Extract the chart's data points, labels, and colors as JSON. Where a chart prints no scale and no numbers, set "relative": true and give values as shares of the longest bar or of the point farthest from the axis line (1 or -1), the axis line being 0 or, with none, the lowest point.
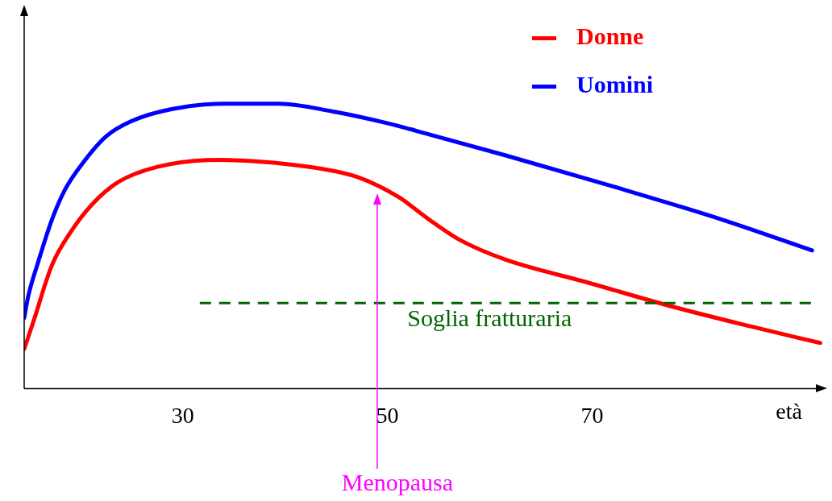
{
  "chart_data": {
    "type": "line",
    "relative": true,
    "xlabel": "età",
    "xlim": [
      14.5,
      92.5
    ],
    "xticks": [
      30,
      50,
      70
    ],
    "legend": "top right",
    "marker": "none",
    "line_style": "solid",
    "grid": false,
    "series": [
      {
        "name": "Donne",
        "color": "#ff0000",
        "x": [
          14.5,
          15.4,
          17.2,
          19.0,
          21.1,
          23.7,
          27.6,
          33.6,
          38.1,
          43.3,
          47.2,
          51.1,
          54.0,
          57.0,
          61.5,
          69.5,
          77.5,
          85.4,
          92.3
        ],
        "values": [
          0.139,
          0.235,
          0.432,
          0.547,
          0.645,
          0.725,
          0.779,
          0.803,
          0.795,
          0.773,
          0.741,
          0.672,
          0.595,
          0.523,
          0.453,
          0.373,
          0.291,
          0.219,
          0.16
        ]
      },
      {
        "name": "Uomini",
        "color": "#0000ff",
        "x": [
          14.5,
          14.9,
          15.9,
          17.2,
          18.5,
          20.3,
          22.5,
          25.0,
          28.9,
          34.2,
          39.4,
          44.6,
          49.8,
          54.0,
          61.5,
          72.1,
          82.8,
          91.5
        ],
        "values": [
          0.248,
          0.325,
          0.448,
          0.592,
          0.699,
          0.795,
          0.885,
          0.939,
          0.981,
          1.0,
          1.0,
          0.973,
          0.933,
          0.893,
          0.819,
          0.709,
          0.592,
          0.485
        ]
      }
    ],
    "ref_lines": [
      {
        "axis": "y",
        "value": 0.3,
        "label": "Soglia fratturaria",
        "color": "#006400",
        "line_style": "dashed"
      },
      {
        "axis": "x",
        "value": 49,
        "label": "Menopausa",
        "color": "#ff00ff",
        "line_style": "solid"
      }
    ]
  }
}
